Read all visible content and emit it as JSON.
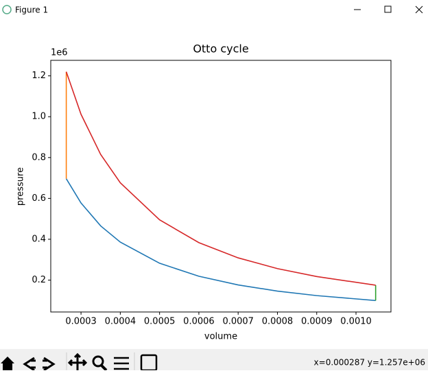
{
  "window": {
    "title": "Figure 1",
    "status": "x=0.000287 y=1.257e+06"
  },
  "chart_data": {
    "type": "line",
    "title": "Otto cycle",
    "xlabel": "volume",
    "ylabel": "pressure",
    "y_offset_label": "1e6",
    "series": [
      {
        "color": "#1f77b4",
        "x": [
          0.0002625,
          0.0003,
          0.00035,
          0.0004,
          0.0005,
          0.0006,
          0.0007,
          0.0008,
          0.0009,
          0.00105
        ],
        "values": [
          696400,
          577700,
          465500,
          386200,
          282600,
          218900,
          176400,
          146300,
          124100,
          100000
        ]
      },
      {
        "color": "#ff7f0e",
        "x": [
          0.0002625,
          0.0002625
        ],
        "values": [
          696400,
          1220000
        ]
      },
      {
        "color": "#2ca02c",
        "x": [
          0.00105,
          0.00105
        ],
        "values": [
          175200,
          100000
        ]
      },
      {
        "color": "#d62728",
        "x": [
          0.0002625,
          0.0003,
          0.00035,
          0.0004,
          0.0005,
          0.0006,
          0.0007,
          0.0008,
          0.0009,
          0.00105
        ],
        "values": [
          1220000,
          1012000,
          815500,
          676600,
          495100,
          383500,
          309000,
          256300,
          217400,
          175200
        ]
      }
    ],
    "xlim": [
      0.000223,
      0.001089
    ],
    "xticks": [
      0.0003,
      0.0004,
      0.0005,
      0.0006,
      0.0007,
      0.0008,
      0.0009,
      {
        "value": 0.001,
        "label": "0.0010"
      }
    ],
    "ylim": [
      44000,
      1276000
    ],
    "yticks": [
      {
        "value": 200000,
        "label": "0.2"
      },
      {
        "value": 400000,
        "label": "0.4"
      },
      {
        "value": 600000,
        "label": "0.6"
      },
      {
        "value": 800000,
        "label": "0.8"
      },
      {
        "value": 1000000,
        "label": "1.0"
      },
      {
        "value": 1200000,
        "label": "1.2"
      }
    ],
    "grid": false
  }
}
